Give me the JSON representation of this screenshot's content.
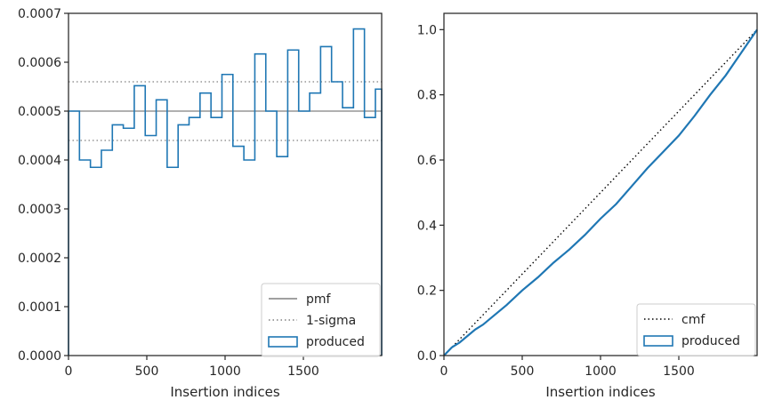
{
  "chart_data": [
    {
      "type": "line",
      "xlabel": "Insertion indices",
      "ylabel": "",
      "xlim": [
        0,
        2000
      ],
      "ylim": [
        0,
        0.0007
      ],
      "xticks": [
        0,
        500,
        1000,
        1500
      ],
      "xtick_labels": [
        "0",
        "500",
        "1000",
        "1500"
      ],
      "yticks": [
        0,
        0.0001,
        0.0002,
        0.0003,
        0.0004,
        0.0005,
        0.0006,
        0.0007
      ],
      "ytick_labels": [
        "0.0000",
        "0.0001",
        "0.0002",
        "0.0003",
        "0.0004",
        "0.0005",
        "0.0006",
        "0.0007"
      ],
      "grid": false,
      "legend_position": "bottom-right",
      "reference_lines": [
        {
          "name": "pmf",
          "y": 0.0005,
          "color": "#808080",
          "style": "solid"
        },
        {
          "name": "1-sigma",
          "y": 0.00056,
          "color": "#808080",
          "style": "dotted"
        },
        {
          "name": "1-sigma",
          "y": 0.00044,
          "color": "#808080",
          "style": "dotted"
        }
      ],
      "series": [
        {
          "name": "produced",
          "color": "#1f77b4",
          "histtype": "step",
          "bin_edges": [
            0,
            70,
            140,
            210,
            280,
            350,
            420,
            490,
            560,
            630,
            700,
            770,
            840,
            910,
            980,
            1050,
            1120,
            1190,
            1260,
            1330,
            1400,
            1470,
            1540,
            1610,
            1680,
            1750,
            1820,
            1890,
            1960,
            2000
          ],
          "values": [
            0.0005,
            0.0004,
            0.000385,
            0.00042,
            0.000472,
            0.000465,
            0.000552,
            0.00045,
            0.000523,
            0.000385,
            0.000472,
            0.000487,
            0.000537,
            0.000487,
            0.000575,
            0.000428,
            0.0004,
            0.000617,
            0.0005,
            0.000407,
            0.000625,
            0.0005,
            0.000537,
            0.000632,
            0.00056,
            0.000507,
            0.000668,
            0.000487,
            0.000545
          ]
        }
      ],
      "legend": [
        {
          "label": "pmf",
          "kind": "line-solid",
          "color": "#808080"
        },
        {
          "label": "1-sigma",
          "kind": "line-dotted",
          "color": "#808080"
        },
        {
          "label": "produced",
          "kind": "patch",
          "color": "#1f77b4"
        }
      ]
    },
    {
      "type": "line",
      "xlabel": "Insertion indices",
      "ylabel": "",
      "xlim": [
        0,
        2000
      ],
      "ylim": [
        0,
        1.05
      ],
      "xticks": [
        0,
        500,
        1000,
        1500
      ],
      "xtick_labels": [
        "0",
        "500",
        "1000",
        "1500"
      ],
      "yticks": [
        0,
        0.2,
        0.4,
        0.6,
        0.8,
        1.0
      ],
      "ytick_labels": [
        "0.0",
        "0.2",
        "0.4",
        "0.6",
        "0.8",
        "1.0"
      ],
      "grid": false,
      "legend_position": "bottom-right",
      "series": [
        {
          "name": "cmf",
          "color": "#000000",
          "style": "dotted",
          "x": [
            0,
            2000
          ],
          "y": [
            0,
            1.0
          ]
        },
        {
          "name": "produced",
          "color": "#1f77b4",
          "style": "step",
          "x": [
            0,
            50,
            100,
            150,
            200,
            250,
            300,
            400,
            500,
            600,
            700,
            800,
            900,
            1000,
            1100,
            1200,
            1300,
            1400,
            1500,
            1600,
            1700,
            1800,
            1900,
            2000
          ],
          "y": [
            0,
            0.025,
            0.04,
            0.06,
            0.08,
            0.095,
            0.115,
            0.155,
            0.2,
            0.24,
            0.285,
            0.325,
            0.37,
            0.42,
            0.465,
            0.52,
            0.575,
            0.625,
            0.675,
            0.735,
            0.8,
            0.86,
            0.93,
            1.0
          ]
        }
      ],
      "legend": [
        {
          "label": "cmf",
          "kind": "line-dotted",
          "color": "#000000"
        },
        {
          "label": "produced",
          "kind": "patch",
          "color": "#1f77b4"
        }
      ]
    }
  ]
}
